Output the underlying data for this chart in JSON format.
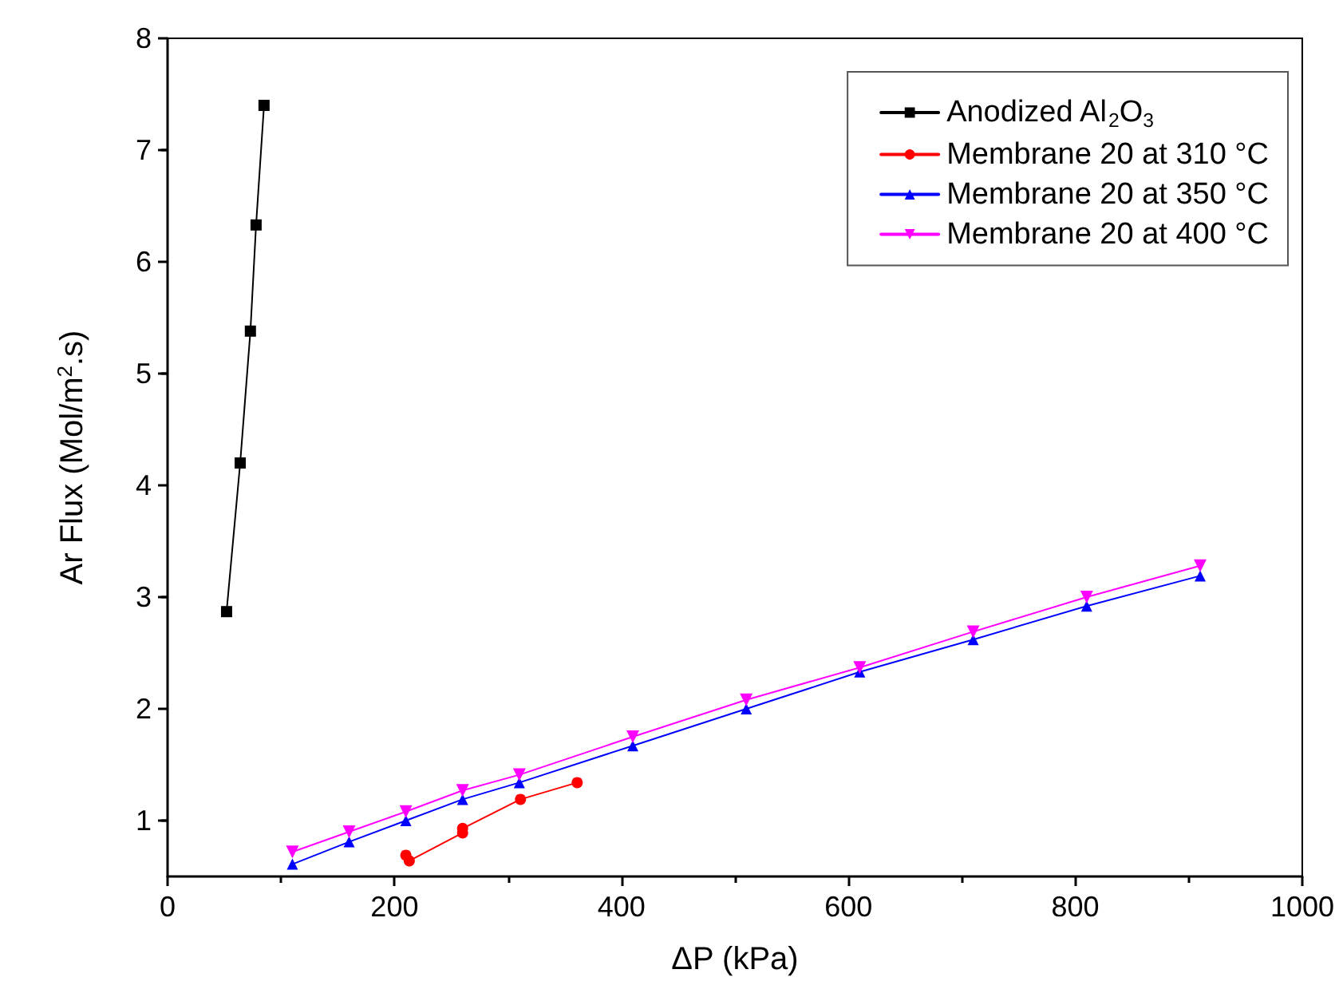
{
  "chart_data": {
    "type": "line",
    "xlabel": "ΔP (kPa)",
    "ylabel": "Ar Flux (Mol/m$^{2}$.s)",
    "xlim": [
      0,
      1000
    ],
    "xticks": [
      0,
      200,
      400,
      600,
      800,
      1000
    ],
    "ylim": [
      0.5,
      8
    ],
    "yticks": [
      1,
      2,
      3,
      4,
      5,
      6,
      7,
      8
    ],
    "grid": false,
    "legend": "top right",
    "line_style": "solid",
    "series": [
      {
        "name": "Anodized Al$_{2}$O$_{3}$",
        "color": "#000000",
        "marker": "square",
        "x": [
          52,
          64,
          73,
          78,
          85
        ],
        "values": [
          2.87,
          4.2,
          5.38,
          6.33,
          7.4
        ]
      },
      {
        "name": "Membrane 20 at 310 °C",
        "color": "#ff0000",
        "marker": "circle",
        "x": [
          210,
          213,
          260,
          260,
          311,
          361
        ],
        "values": [
          0.69,
          0.64,
          0.89,
          0.93,
          1.19,
          1.34
        ]
      },
      {
        "name": "Membrane 20 at 350 °C",
        "color": "#0000ff",
        "marker": "triangle",
        "x": [
          110,
          160,
          210,
          260,
          310,
          410,
          510,
          610,
          710,
          810,
          910
        ],
        "values": [
          0.61,
          0.81,
          1.0,
          1.19,
          1.34,
          1.67,
          2.0,
          2.33,
          2.62,
          2.92,
          3.19
        ]
      },
      {
        "name": "Membrane 20 at 400 °C",
        "color": "#ff00ff",
        "marker": "triangle-down",
        "x": [
          110,
          160,
          210,
          260,
          310,
          410,
          510,
          610,
          710,
          810,
          910
        ],
        "values": [
          0.72,
          0.9,
          1.08,
          1.27,
          1.41,
          1.75,
          2.08,
          2.37,
          2.69,
          3.0,
          3.28
        ]
      }
    ]
  }
}
